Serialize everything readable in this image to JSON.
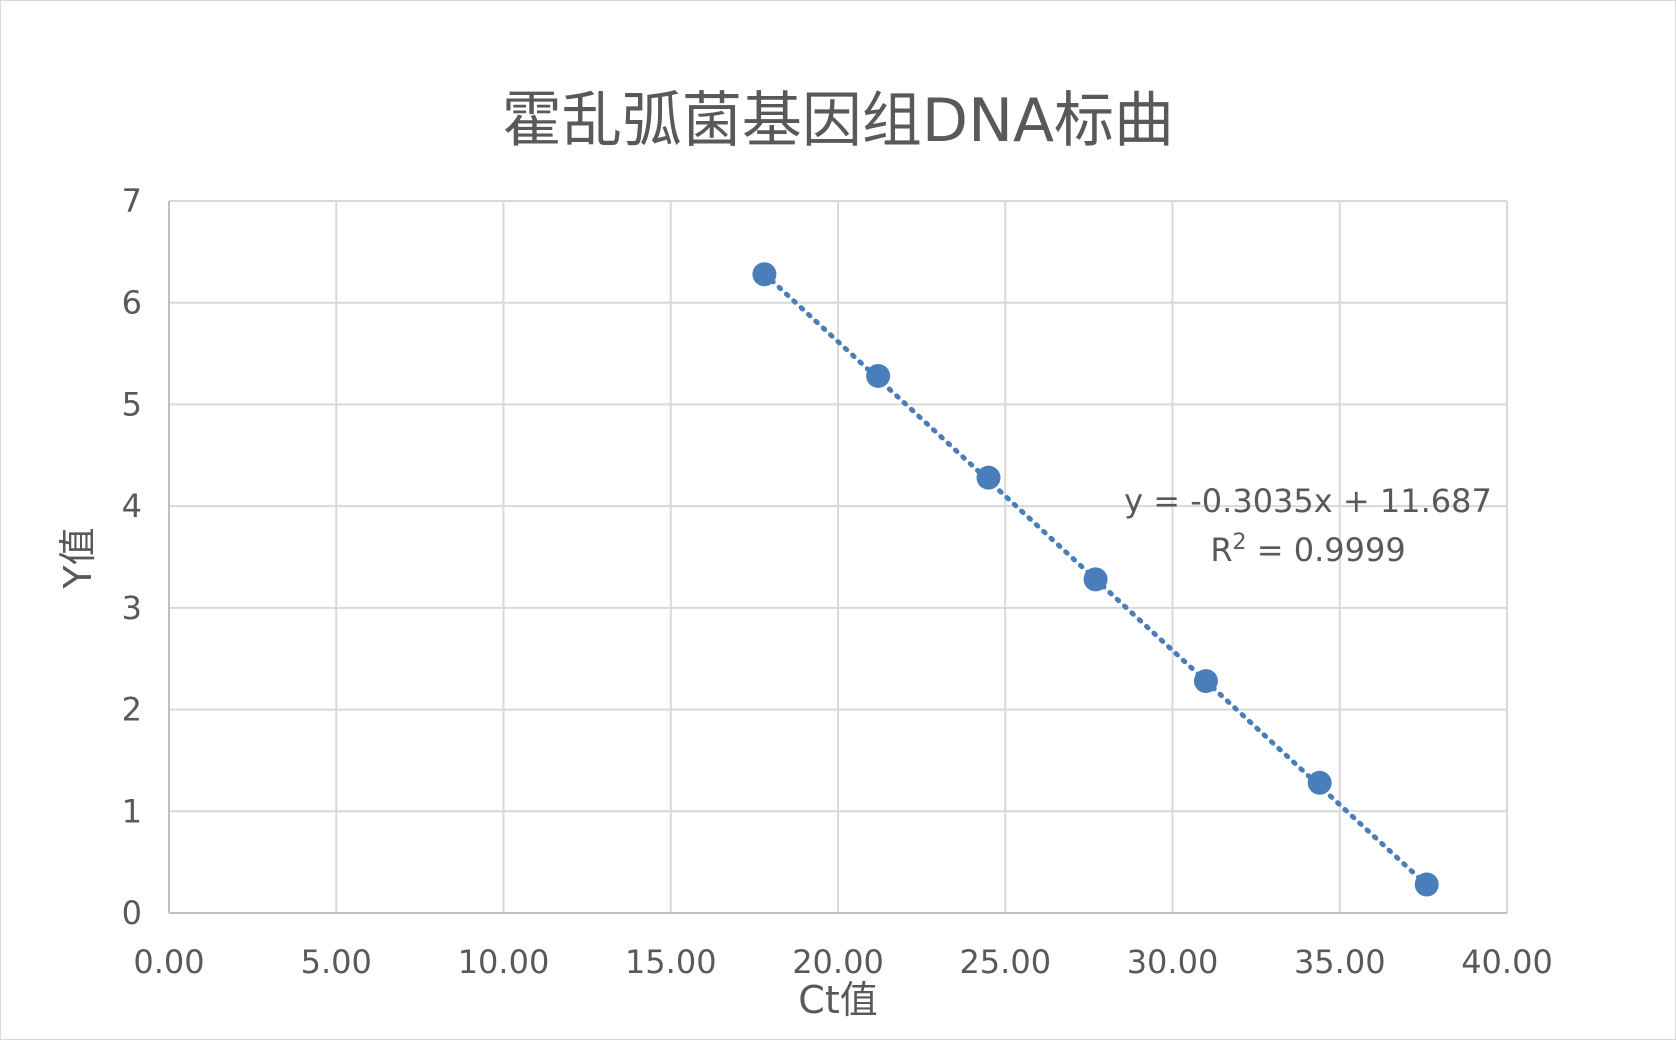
{
  "chart_data": {
    "type": "scatter",
    "title": "霍乱弧菌基因组DNA标曲",
    "xlabel": "Ct值",
    "ylabel": "Y值",
    "xlim": [
      0,
      40
    ],
    "ylim": [
      0,
      7
    ],
    "x_ticks": [
      "0.00",
      "5.00",
      "10.00",
      "15.00",
      "20.00",
      "25.00",
      "30.00",
      "35.00",
      "40.00"
    ],
    "y_ticks": [
      "0",
      "1",
      "2",
      "3",
      "4",
      "5",
      "6",
      "7"
    ],
    "grid": true,
    "series": [
      {
        "color": "#4a7ebb",
        "x": [
          17.8,
          21.2,
          24.5,
          27.7,
          31.0,
          34.4,
          37.6
        ],
        "y": [
          6.28,
          5.28,
          4.28,
          3.28,
          2.28,
          1.28,
          0.28
        ]
      }
    ],
    "trendline": {
      "style": "dotted",
      "color": "#4a7ebb",
      "slope": -0.3035,
      "intercept": 11.687,
      "x_range": [
        17.8,
        37.6
      ],
      "equation_text": "y = -0.3035x + 11.687",
      "r2_prefix": "R",
      "r2_sup": "2",
      "r2_suffix": " = 0.9999"
    },
    "colors": {
      "grid": "#d9d9d9",
      "axis": "#bfbfbf",
      "text": "#595959"
    }
  }
}
